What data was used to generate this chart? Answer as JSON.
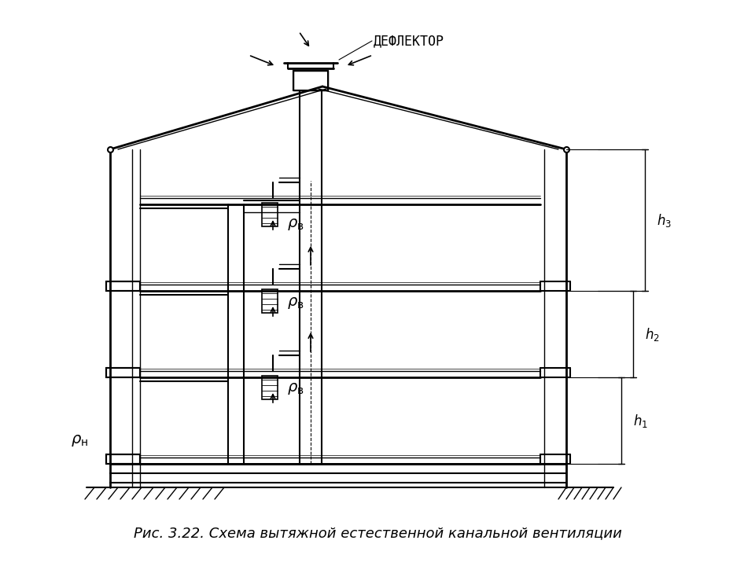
{
  "title": "Рис. 3.22. Схема вытяжной естественной канальной вентиляции",
  "deflector_label": "ДЕФЛЕКТОР",
  "rho_n_label": "ρн",
  "rho_v_labels": [
    "ρв",
    "ρв",
    "ρв"
  ],
  "h_labels": [
    "h₃",
    "h₂",
    "h₁"
  ],
  "line_color": "#000000",
  "bg_color": "#ffffff",
  "title_fontsize": 13,
  "label_fontsize": 13
}
